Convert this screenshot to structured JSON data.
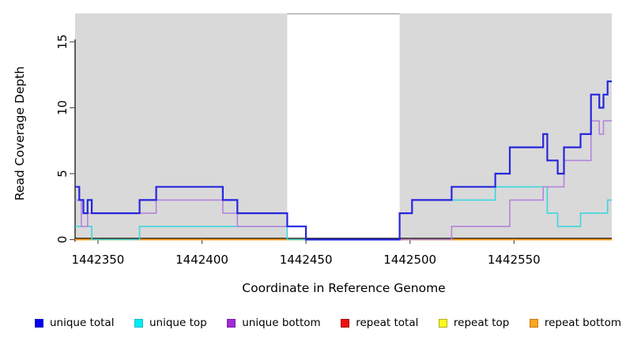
{
  "chart_data": {
    "type": "line",
    "subtype": "step",
    "title": "",
    "xlabel": "Coordinate in Reference Genome",
    "ylabel": "Read Coverage Depth",
    "xlim": [
      1442339,
      1442597
    ],
    "ylim": [
      0,
      17.2
    ],
    "xticks": [
      1442350,
      1442400,
      1442450,
      1442500,
      1442550
    ],
    "yticks": [
      0,
      5,
      10,
      15
    ],
    "plot_bg_color": "#d9d9d9",
    "gap_region": {
      "from": 1442441,
      "to": 1442495,
      "color": "#ffffff"
    },
    "grid": "off",
    "legend_position": "bottom",
    "series": [
      {
        "name": "repeat total",
        "color": "#d42a2a",
        "width": 1.6,
        "points": [
          [
            1442339,
            0
          ],
          [
            1442597,
            0
          ]
        ]
      },
      {
        "name": "repeat top",
        "color": "#e8e82e",
        "width": 1.6,
        "points": [
          [
            1442339,
            0
          ],
          [
            1442597,
            0
          ]
        ]
      },
      {
        "name": "repeat bottom",
        "color": "#ff9d1e",
        "width": 2,
        "points": [
          [
            1442339,
            0
          ],
          [
            1442597,
            0
          ]
        ]
      },
      {
        "name": "unique top",
        "color": "#3cd7e0",
        "width": 1.6,
        "points": [
          [
            1442339,
            1
          ],
          [
            1442347,
            0
          ],
          [
            1442370,
            1
          ],
          [
            1442441,
            0
          ],
          [
            1442495,
            2
          ],
          [
            1442501,
            3
          ],
          [
            1442541,
            4
          ],
          [
            1442566,
            2
          ],
          [
            1442571,
            1
          ],
          [
            1442582,
            2
          ],
          [
            1442595,
            3
          ],
          [
            1442597,
            3
          ]
        ]
      },
      {
        "name": "unique bottom",
        "color": "#b285da",
        "width": 1.6,
        "points": [
          [
            1442339,
            3
          ],
          [
            1442342,
            1
          ],
          [
            1442345,
            2
          ],
          [
            1442378,
            3
          ],
          [
            1442410,
            2
          ],
          [
            1442417,
            1
          ],
          [
            1442450,
            0
          ],
          [
            1442520,
            1
          ],
          [
            1442548,
            3
          ],
          [
            1442564,
            4
          ],
          [
            1442574,
            6
          ],
          [
            1442587,
            9
          ],
          [
            1442591,
            8
          ],
          [
            1442593,
            9
          ],
          [
            1442597,
            9
          ]
        ]
      },
      {
        "name": "unique total",
        "color": "#2626de",
        "width": 2.2,
        "points": [
          [
            1442339,
            4
          ],
          [
            1442341,
            3
          ],
          [
            1442343,
            2
          ],
          [
            1442345,
            3
          ],
          [
            1442347,
            2
          ],
          [
            1442370,
            3
          ],
          [
            1442378,
            4
          ],
          [
            1442410,
            3
          ],
          [
            1442417,
            2
          ],
          [
            1442441,
            1
          ],
          [
            1442450,
            0
          ],
          [
            1442495,
            2
          ],
          [
            1442501,
            3
          ],
          [
            1442520,
            4
          ],
          [
            1442541,
            5
          ],
          [
            1442548,
            7
          ],
          [
            1442564,
            8
          ],
          [
            1442566,
            6
          ],
          [
            1442571,
            5
          ],
          [
            1442574,
            7
          ],
          [
            1442582,
            8
          ],
          [
            1442587,
            11
          ],
          [
            1442591,
            10
          ],
          [
            1442593,
            11
          ],
          [
            1442595,
            12
          ],
          [
            1442597,
            12
          ]
        ]
      }
    ],
    "legend": [
      {
        "label": "unique total",
        "fill": "#0202f2",
        "border": "#1a1ab8"
      },
      {
        "label": "unique top",
        "fill": "#02eaf2",
        "border": "#1fb9c4"
      },
      {
        "label": "unique bottom",
        "fill": "#a228d8",
        "border": "#7c22a8"
      },
      {
        "label": "repeat total",
        "fill": "#ee1111",
        "border": "#a01313"
      },
      {
        "label": "repeat top",
        "fill": "#fafa1e",
        "border": "#b0b016"
      },
      {
        "label": "repeat bottom",
        "fill": "#ffa51e",
        "border": "#c97a10"
      }
    ]
  }
}
